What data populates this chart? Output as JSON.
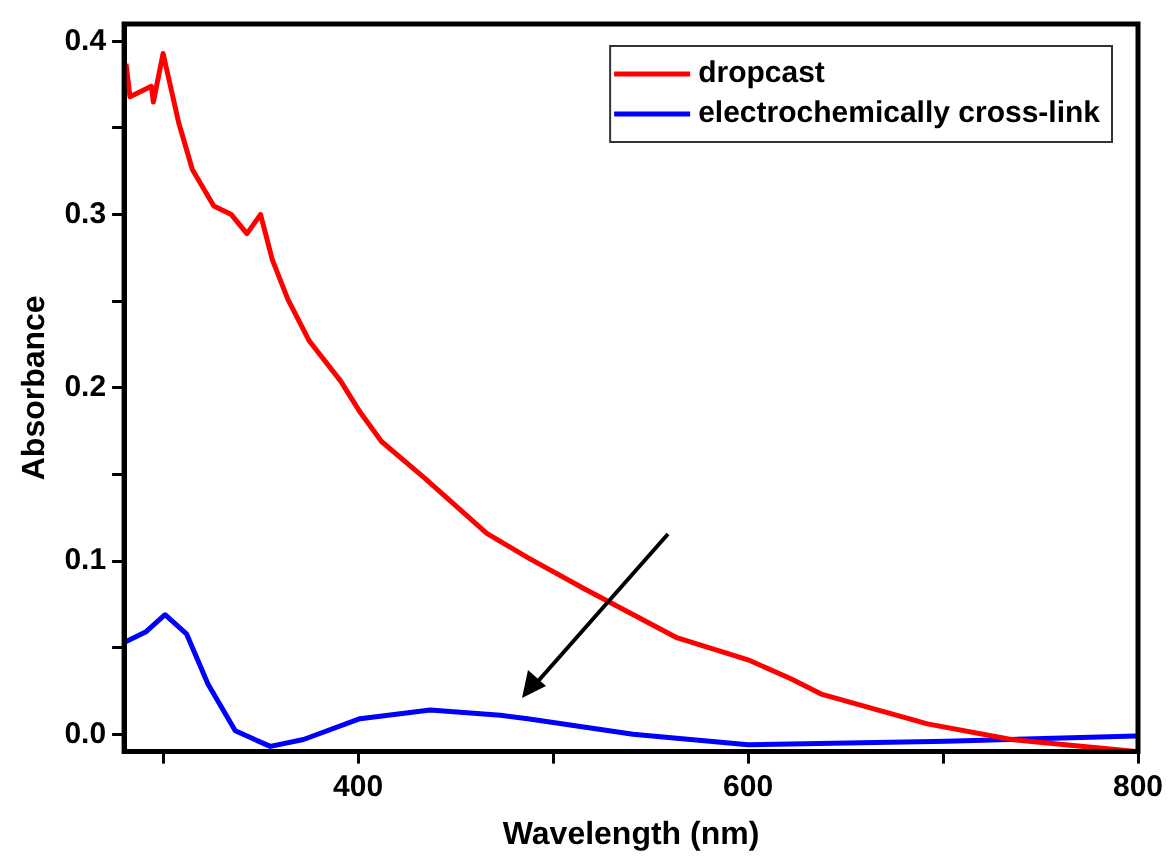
{
  "chart_data": {
    "type": "line",
    "xlabel": "Wavelength (nm)",
    "ylabel": "Absorbance",
    "xlim": [
      280,
      800
    ],
    "ylim": [
      -0.01,
      0.41
    ],
    "xticks": [
      {
        "value": 300,
        "label": null
      },
      400,
      {
        "value": 500,
        "label": null
      },
      600,
      {
        "value": 700,
        "label": null
      },
      800
    ],
    "yticks": [
      "0.0",
      {
        "value": 0.05,
        "label": null
      },
      0.1,
      {
        "value": 0.15,
        "label": null
      },
      0.2,
      {
        "value": 0.25,
        "label": null
      },
      0.3,
      {
        "value": 0.35,
        "label": null
      },
      0.4
    ],
    "grid": false,
    "legend": "top right",
    "marker": "none",
    "line_style": "solid",
    "series": [
      {
        "name": "dropcast",
        "color": "#ff0000",
        "x": [
          281,
          283,
          294,
          295,
          300,
          308,
          315,
          326,
          335,
          343,
          350,
          356,
          364,
          375,
          391,
          401,
          412,
          434,
          466,
          487,
          516,
          563,
          600,
          622,
          638,
          692,
          735,
          799
        ],
        "values": [
          0.387,
          0.368,
          0.374,
          0.365,
          0.393,
          0.353,
          0.326,
          0.305,
          0.3,
          0.289,
          0.3,
          0.274,
          0.251,
          0.227,
          0.204,
          0.186,
          0.169,
          0.148,
          0.116,
          0.102,
          0.084,
          0.056,
          0.043,
          0.032,
          0.023,
          0.006,
          -0.003,
          -0.01
        ]
      },
      {
        "name": "electrochemically cross-link",
        "color": "#0000ff",
        "x": [
          280,
          291,
          301,
          312,
          323,
          337,
          355,
          372,
          401,
          437,
          473,
          487,
          541,
          600,
          702,
          799
        ],
        "values": [
          0.053,
          0.059,
          0.069,
          0.058,
          0.029,
          0.002,
          -0.007,
          -0.003,
          0.009,
          0.014,
          0.011,
          0.009,
          0.0,
          -0.006,
          -0.004,
          -0.001
        ]
      }
    ]
  }
}
